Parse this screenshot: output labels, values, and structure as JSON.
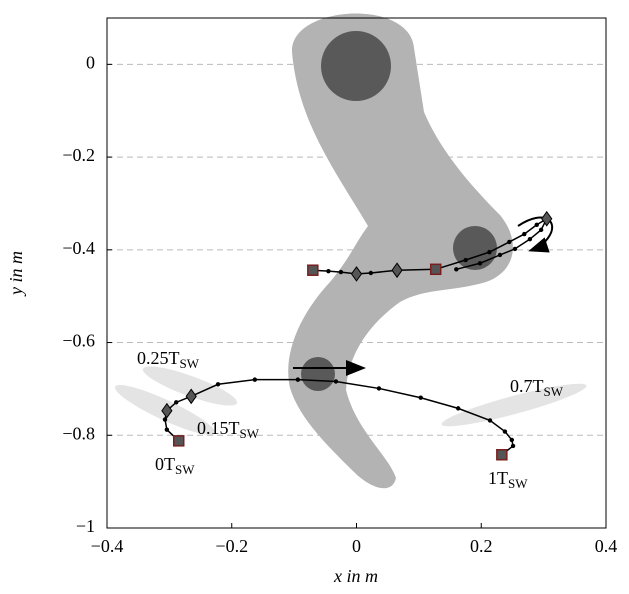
{
  "chart_data": {
    "type": "line",
    "x_label": "x in m",
    "y_label": "y in m",
    "xlim": [
      -0.4,
      0.4
    ],
    "ylim": [
      -1,
      0.1
    ],
    "xticks": [
      {
        "value": -0.4,
        "label": "−0.4"
      },
      {
        "value": -0.2,
        "label": "−0.2"
      },
      0,
      0.2,
      0.4
    ],
    "yticks": [
      0,
      {
        "value": -0.2,
        "label": "−0.2"
      },
      {
        "value": -0.4,
        "label": "−0.4"
      },
      {
        "value": -0.6,
        "label": "−0.6"
      },
      {
        "value": -0.8,
        "label": "−0.8"
      },
      {
        "value": -1,
        "label": "−1"
      }
    ],
    "grid": true,
    "series": [
      {
        "color": "#000000",
        "x": [
          -0.07,
          -0.045,
          -0.025,
          0,
          0.023,
          0.065,
          0.127,
          0.175,
          0.213,
          0.245,
          0.269,
          0.289,
          0.305,
          0.296,
          0.278,
          0.254,
          0.23,
          0.198,
          0.16
        ],
        "values": [
          -0.444,
          -0.446,
          -0.448,
          -0.452,
          -0.45,
          -0.444,
          -0.442,
          -0.422,
          -0.405,
          -0.383,
          -0.366,
          -0.346,
          -0.333,
          -0.357,
          -0.377,
          -0.398,
          -0.411,
          -0.429,
          -0.442
        ],
        "markers": [
          "square",
          "dot",
          "dot",
          "diamond",
          "dot",
          "diamond",
          "square",
          "dot",
          "dot",
          "dot",
          "dot",
          "dot",
          "diamond",
          "dot",
          "dot",
          "dot",
          "dot",
          "dot",
          "dot"
        ]
      },
      {
        "color": "#000000",
        "x": [
          -0.285,
          -0.304,
          -0.307,
          -0.304,
          -0.289,
          -0.265,
          -0.222,
          -0.163,
          -0.094,
          -0.033,
          0.036,
          0.103,
          0.163,
          0.214,
          0.238,
          0.249,
          0.251,
          0.233
        ],
        "values": [
          -0.812,
          -0.788,
          -0.766,
          -0.747,
          -0.729,
          -0.716,
          -0.69,
          -0.68,
          -0.68,
          -0.684,
          -0.699,
          -0.719,
          -0.742,
          -0.768,
          -0.792,
          -0.81,
          -0.823,
          -0.842
        ],
        "markers": [
          "square",
          "dot",
          "dot",
          "diamond",
          "dot",
          "diamond",
          "dot",
          "dot",
          "dot",
          "dot",
          "dot",
          "dot",
          "dot",
          "dot",
          "dot",
          "dot",
          "dot",
          "square"
        ]
      }
    ],
    "annotations": [
      {
        "text": "0.25T",
        "sub": "SW"
      },
      {
        "text": "0.15T",
        "sub": "SW"
      },
      {
        "text": "0T",
        "sub": "SW"
      },
      {
        "text": "0.7T",
        "sub": "SW"
      },
      {
        "text": "1T",
        "sub": "SW"
      }
    ]
  }
}
